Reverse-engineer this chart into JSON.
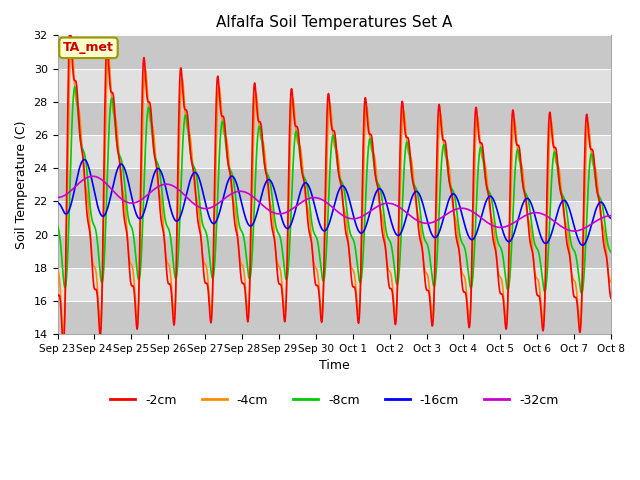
{
  "title": "Alfalfa Soil Temperatures Set A",
  "xlabel": "Time",
  "ylabel": "Soil Temperature (C)",
  "ylim": [
    14,
    32
  ],
  "yticks": [
    14,
    16,
    18,
    20,
    22,
    24,
    26,
    28,
    30,
    32
  ],
  "xtick_labels": [
    "Sep 23",
    "Sep 24",
    "Sep 25",
    "Sep 26",
    "Sep 27",
    "Sep 28",
    "Sep 29",
    "Sep 30",
    "Oct 1",
    "Oct 2",
    "Oct 3",
    "Oct 4",
    "Oct 5",
    "Oct 6",
    "Oct 7",
    "Oct 8"
  ],
  "colors": {
    "-2cm": "#FF0000",
    "-4cm": "#FF8C00",
    "-8cm": "#00CC00",
    "-16cm": "#0000FF",
    "-32cm": "#CC00CC"
  },
  "legend_label": "TA_met",
  "plot_bg_color": "#DCDCDC",
  "band_color_dark": "#C8C8C8",
  "band_color_light": "#E0E0E0",
  "annotation_box_color": "#FFFFCC",
  "annotation_text_color": "#CC0000",
  "annotation_border_color": "#999900"
}
